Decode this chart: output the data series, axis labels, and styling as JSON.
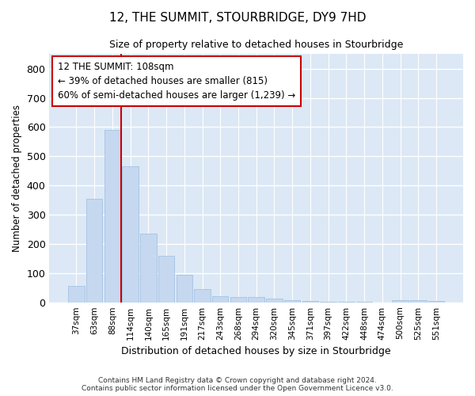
{
  "title": "12, THE SUMMIT, STOURBRIDGE, DY9 7HD",
  "subtitle": "Size of property relative to detached houses in Stourbridge",
  "xlabel": "Distribution of detached houses by size in Stourbridge",
  "ylabel": "Number of detached properties",
  "bar_color": "#c5d8f0",
  "bar_edge_color": "#9bbde0",
  "background_color": "#dce8f5",
  "grid_color": "#ffffff",
  "fig_background": "#ffffff",
  "categories": [
    "37sqm",
    "63sqm",
    "88sqm",
    "114sqm",
    "140sqm",
    "165sqm",
    "191sqm",
    "217sqm",
    "243sqm",
    "268sqm",
    "294sqm",
    "320sqm",
    "345sqm",
    "371sqm",
    "397sqm",
    "422sqm",
    "448sqm",
    "474sqm",
    "500sqm",
    "525sqm",
    "551sqm"
  ],
  "values": [
    55,
    355,
    590,
    465,
    235,
    160,
    95,
    45,
    20,
    18,
    18,
    13,
    7,
    4,
    3,
    2,
    1,
    0,
    8,
    8,
    5
  ],
  "ylim": [
    0,
    850
  ],
  "yticks": [
    0,
    100,
    200,
    300,
    400,
    500,
    600,
    700,
    800
  ],
  "vline_index": 3,
  "vline_color": "#cc0000",
  "marker_label": "12 THE SUMMIT: 108sqm",
  "annotation_line1": "← 39% of detached houses are smaller (815)",
  "annotation_line2": "60% of semi-detached houses are larger (1,239) →",
  "annotation_box_facecolor": "#ffffff",
  "annotation_box_edgecolor": "#cc0000",
  "footer_line1": "Contains HM Land Registry data © Crown copyright and database right 2024.",
  "footer_line2": "Contains public sector information licensed under the Open Government Licence v3.0."
}
